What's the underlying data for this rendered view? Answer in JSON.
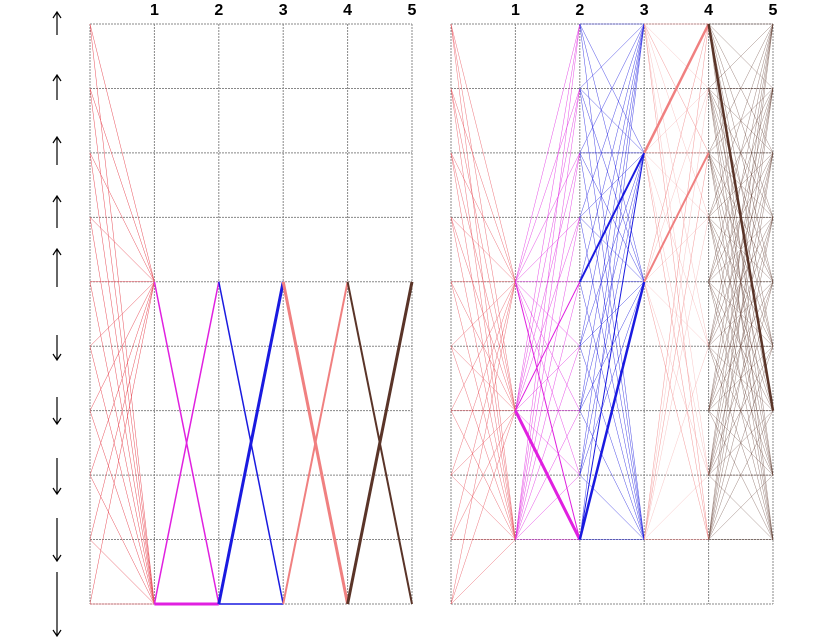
{
  "panels": [
    {
      "column_labels": [
        "1",
        "2",
        "3",
        "4",
        "5"
      ]
    },
    {
      "column_labels": [
        "1",
        "2",
        "3",
        "4",
        "5"
      ]
    }
  ]
}
